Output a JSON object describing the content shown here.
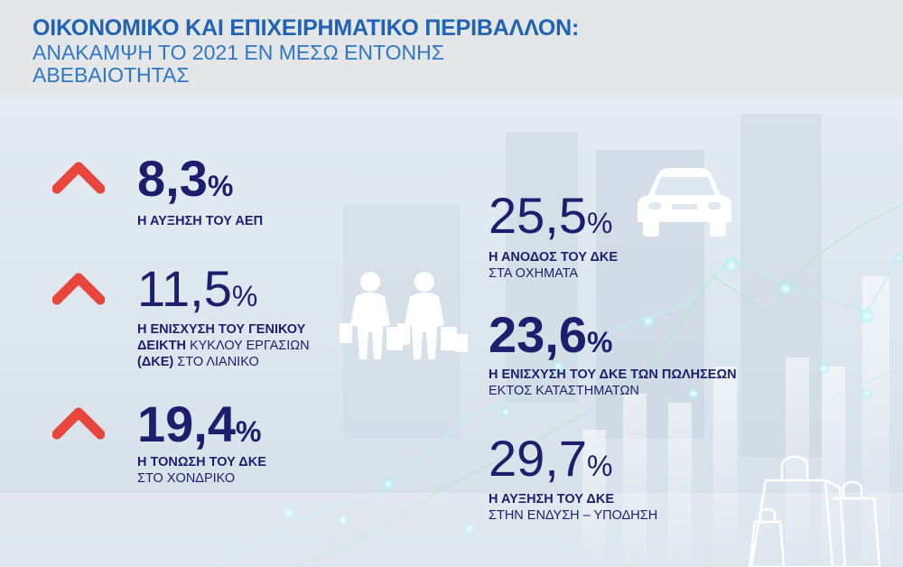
{
  "header": {
    "title": "ΟΙΚΟΝΟΜΙΚΟ ΚΑΙ ΕΠΙΧΕΙΡΗΜΑΤΙΚΟ ΠΕΡΙΒΑΛΛΟΝ:",
    "subtitle_line1": "ΑΝΑΚΑΜΨΗ ΤΟ 2021 ΕΝ ΜΕΣΩ ΕΝΤΟΝΗΣ",
    "subtitle_line2": "ΑΒΕΒΑΙΟΤΗΤΑΣ"
  },
  "colors": {
    "accent": "#e8453c",
    "navy": "#1d1f6e",
    "title_blue": "#1e63b4"
  },
  "stats_left": [
    {
      "value": "8,3",
      "unit": "%",
      "label_bold": "Η ΑΥΞΗΣΗ ΤΟΥ ΑΕΠ"
    },
    {
      "value": "11,5",
      "unit": "%",
      "label_line1": "Η ΕΝΙΣΧΥΣΗ ΤΟΥ ΓΕΝΙΚΟΥ",
      "label_line2_bold": "ΔΕΙΚΤΗ",
      "label_line2_rest": " ΚΥΚΛΟΥ ΕΡΓΑΣΙΩΝ",
      "label_line3_bold": "(ΔΚΕ)",
      "label_line3_rest": " ΣΤΟ ΛΙΑΝΙΚΟ"
    },
    {
      "value": "19,4",
      "unit": "%",
      "label_bold": "Η ΤΟΝΩΣΗ ΤΟΥ ΔΚΕ",
      "label_rest": "ΣΤΟ ΧΟΝΔΡΙΚΟ"
    }
  ],
  "stats_right": [
    {
      "value": "25,5",
      "unit": "%",
      "label_bold": "Η ΑΝΟΔΟΣ ΤΟΥ ΔΚΕ",
      "label_rest": "ΣΤΑ ΟΧΗΜΑΤΑ"
    },
    {
      "value": "23,6",
      "unit": "%",
      "label_bold": "Η ΕΝΙΣΧΥΣΗ ΤΟΥ ΔΚΕ ΤΩΝ ΠΩΛΗΣΕΩΝ",
      "label_rest": "ΕΚΤΟΣ ΚΑΤΑΣΤΗΜΑΤΩΝ"
    },
    {
      "value": "29,7",
      "unit": "%",
      "label_bold": "Η ΑΥΞΗΣΗ ΤΟΥ ΔΚΕ",
      "label_rest": "ΣΤΗΝ ΕΝΔΥΣΗ – ΥΠΟΔΗΣΗ"
    }
  ],
  "icons": [
    "up-arrow-icon",
    "car-icon",
    "shoppers-icon",
    "shopping-bags-icon"
  ]
}
